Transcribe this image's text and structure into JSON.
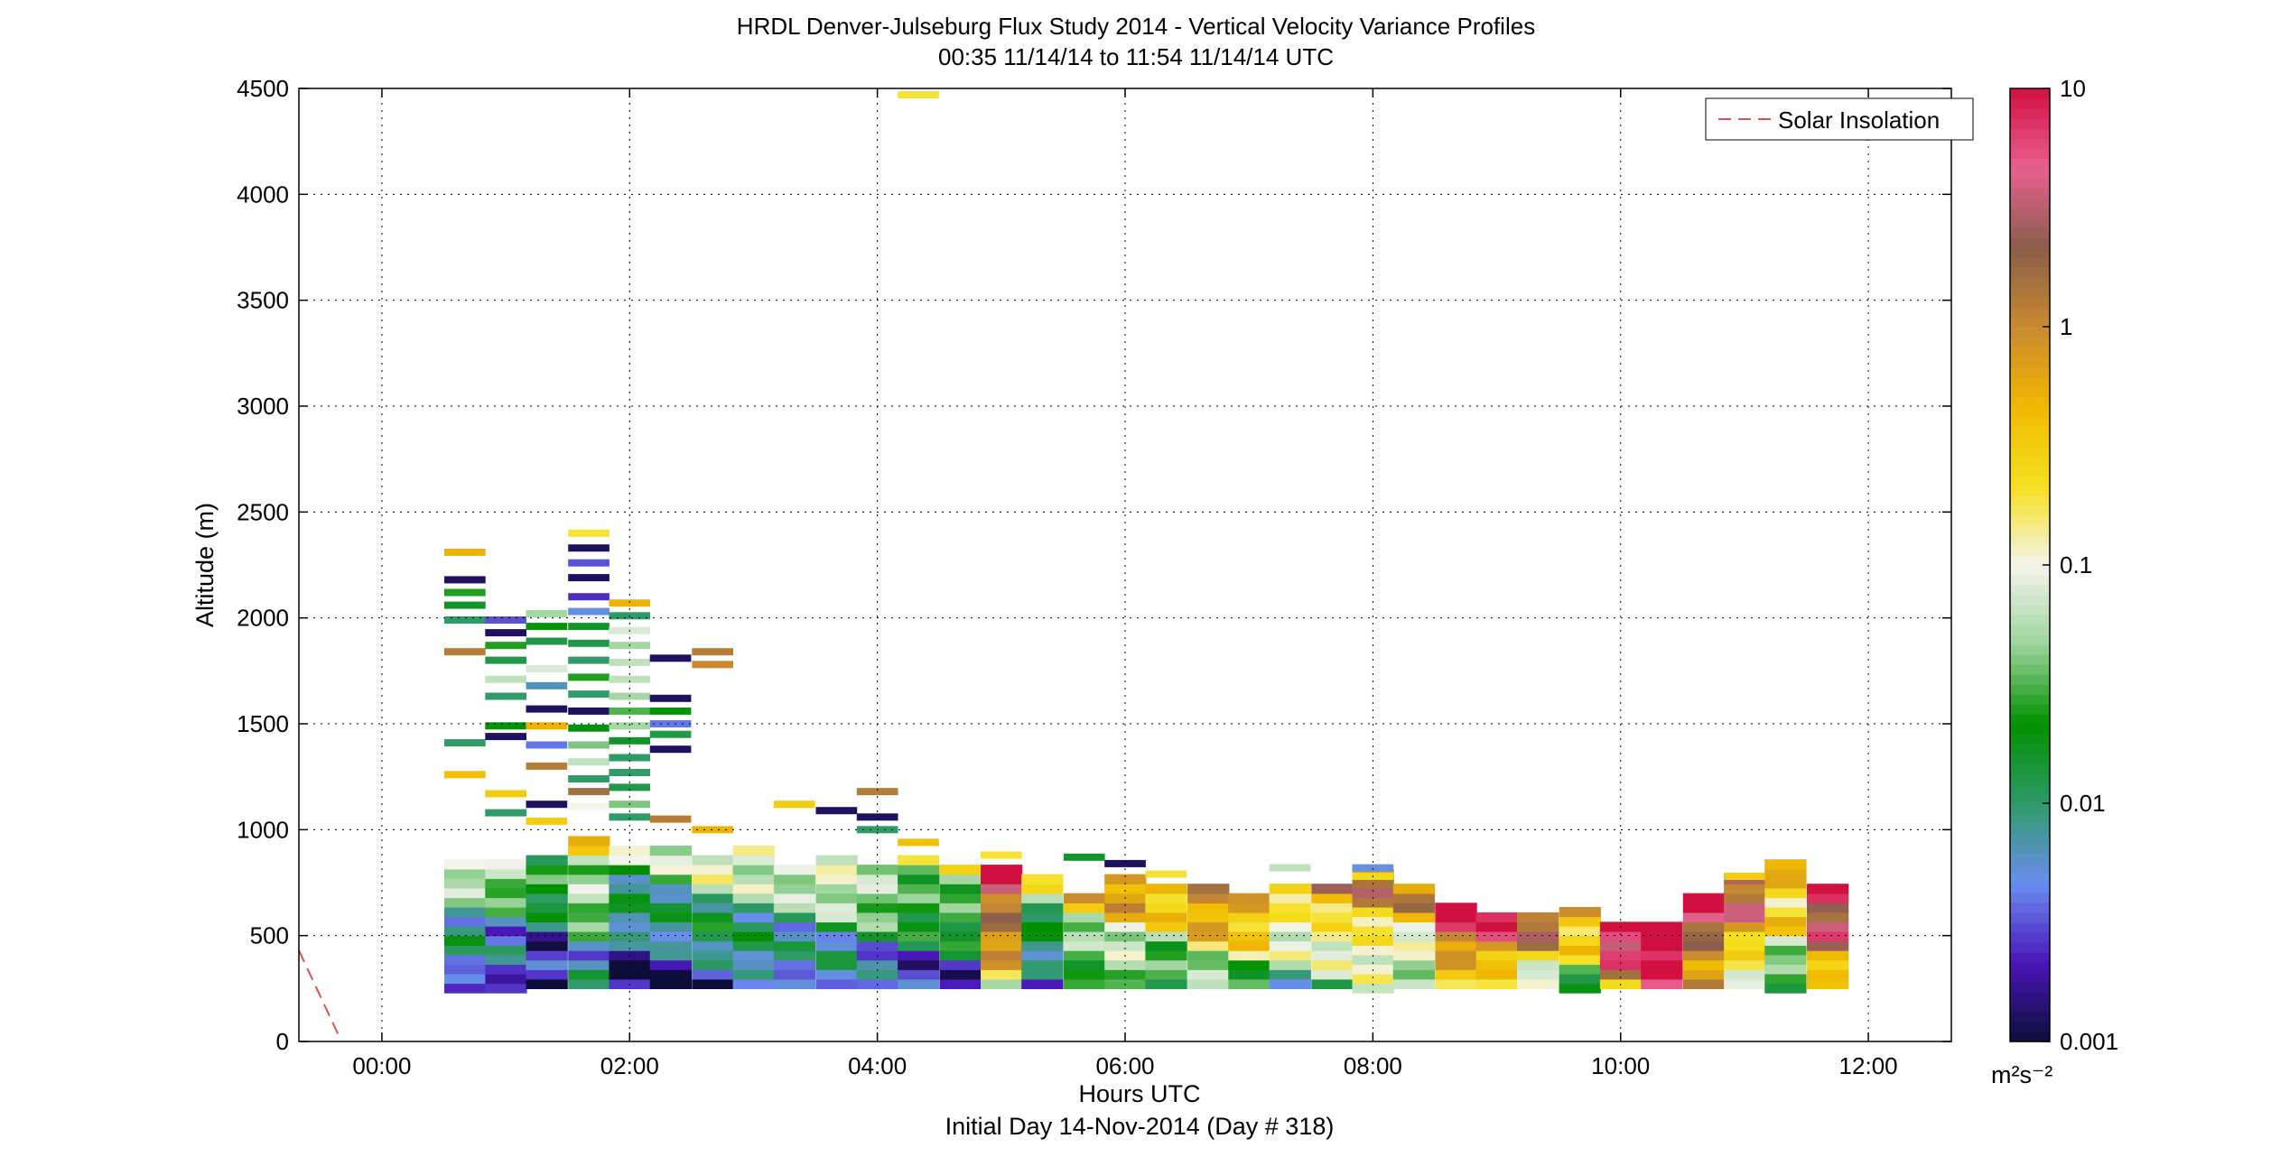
{
  "title_line1": "HRDL Denver-Julseburg Flux Study 2014 - Vertical Velocity Variance Profiles",
  "title_line2": "00:35 11/14/14 to 11:54 11/14/14  UTC",
  "xlabel": "Hours UTC",
  "xlabel_sub": "Initial Day 14-Nov-2014 (Day # 318)",
  "ylabel": "Altitude (m)",
  "legend_label": "Solar Insolation",
  "colorbar_unit": "m²s⁻²",
  "colors": {
    "background": "#ffffff",
    "grid": "#000000",
    "solar_line": "#e05050",
    "colormap": [
      "#0d0d3a",
      "#4a16b8",
      "#6a8ef0",
      "#2f9a6a",
      "#009000",
      "#9cd49c",
      "#f4f4ec",
      "#f5e020",
      "#f0b800",
      "#c98a30",
      "#8a5e4a",
      "#e86090",
      "#d01040"
    ]
  },
  "chart_data": {
    "type": "heatmap",
    "xlim_hours": [
      -0.67,
      12.67
    ],
    "ylim": [
      0,
      4500
    ],
    "x_ticks": [
      {
        "v": 0,
        "label": "00:00"
      },
      {
        "v": 2,
        "label": "02:00"
      },
      {
        "v": 4,
        "label": "04:00"
      },
      {
        "v": 6,
        "label": "06:00"
      },
      {
        "v": 8,
        "label": "08:00"
      },
      {
        "v": 10,
        "label": "10:00"
      },
      {
        "v": 12,
        "label": "12:00"
      }
    ],
    "y_ticks": [
      0,
      500,
      1000,
      1500,
      2000,
      2500,
      3000,
      3500,
      4000,
      4500
    ],
    "colorbar": {
      "scale": "log",
      "range": [
        0.001,
        10
      ],
      "ticks": [
        {
          "v": 0.001,
          "label": "0.001"
        },
        {
          "v": 0.01,
          "label": "0.01"
        },
        {
          "v": 0.1,
          "label": "0.1"
        },
        {
          "v": 1,
          "label": "1"
        },
        {
          "v": 10,
          "label": "10"
        }
      ]
    },
    "solar_insolation": {
      "x": [
        -0.67,
        -0.35
      ],
      "y": [
        430,
        30
      ]
    },
    "profile_times_hours": [
      0.67,
      1.0,
      1.33,
      1.67,
      2.0,
      2.33,
      2.67,
      3.0,
      3.33,
      3.67,
      4.0,
      4.33,
      4.67,
      5.0,
      5.33,
      5.67,
      6.0,
      6.33,
      6.67,
      7.0,
      7.33,
      7.67,
      8.0,
      8.33,
      8.67,
      9.0,
      9.33,
      9.67,
      10.0,
      10.33,
      10.67,
      11.0,
      11.33,
      11.67
    ],
    "profile_top_m": [
      820,
      820,
      880,
      940,
      900,
      900,
      850,
      920,
      830,
      850,
      820,
      850,
      820,
      800,
      750,
      700,
      750,
      730,
      720,
      700,
      730,
      720,
      780,
      740,
      620,
      590,
      590,
      620,
      550,
      550,
      700,
      750,
      840,
      740
    ],
    "profile_bottom_m": [
      230,
      230,
      250,
      250,
      250,
      250,
      250,
      250,
      250,
      250,
      250,
      250,
      250,
      250,
      250,
      250,
      250,
      250,
      250,
      250,
      250,
      250,
      230,
      250,
      250,
      250,
      250,
      230,
      250,
      250,
      250,
      250,
      230,
      250
    ],
    "column_low_variance_log10": [
      -2.7,
      -2.8,
      -2.9,
      -2.3,
      -2.9,
      -2.8,
      -2.6,
      -2.5,
      -2.6,
      -2.4,
      -2.5,
      -2.6,
      -2.5,
      -0.7,
      -2.6,
      -2.0,
      -1.6,
      -1.8,
      -1.4,
      -1.5,
      -1.8,
      -1.6,
      -1.4,
      -1.5,
      -0.6,
      -0.7,
      -1.1,
      -1.6,
      -0.2,
      0.4,
      -0.4,
      -1.0,
      -1.6,
      -0.5
    ],
    "high_streaks": [
      {
        "t": 0.67,
        "alt": 2310,
        "log10": -0.3
      },
      {
        "t": 0.67,
        "alt": 2180,
        "log10": -2.9
      },
      {
        "t": 0.67,
        "alt": 2120,
        "log10": -1.6
      },
      {
        "t": 0.67,
        "alt": 2060,
        "log10": -1.8
      },
      {
        "t": 0.67,
        "alt": 1990,
        "log10": -2.0
      },
      {
        "t": 0.67,
        "alt": 1840,
        "log10": 0.1
      },
      {
        "t": 0.67,
        "alt": 1410,
        "log10": -2.0
      },
      {
        "t": 0.67,
        "alt": 1260,
        "log10": -0.4
      },
      {
        "t": 1.0,
        "alt": 1990,
        "log10": -2.5
      },
      {
        "t": 1.0,
        "alt": 1930,
        "log10": -2.9
      },
      {
        "t": 1.0,
        "alt": 1870,
        "log10": -1.6
      },
      {
        "t": 1.0,
        "alt": 1800,
        "log10": -1.9
      },
      {
        "t": 1.0,
        "alt": 1710,
        "log10": -1.2
      },
      {
        "t": 1.0,
        "alt": 1630,
        "log10": -2.0
      },
      {
        "t": 1.0,
        "alt": 1490,
        "log10": -1.7
      },
      {
        "t": 1.0,
        "alt": 1440,
        "log10": -2.9
      },
      {
        "t": 1.0,
        "alt": 1170,
        "log10": -0.5
      },
      {
        "t": 1.0,
        "alt": 1080,
        "log10": -2.0
      },
      {
        "t": 1.33,
        "alt": 2020,
        "log10": -1.3
      },
      {
        "t": 1.33,
        "alt": 1960,
        "log10": -1.7
      },
      {
        "t": 1.33,
        "alt": 1890,
        "log10": -1.9
      },
      {
        "t": 1.33,
        "alt": 1760,
        "log10": -1.1
      },
      {
        "t": 1.33,
        "alt": 1680,
        "log10": -2.2
      },
      {
        "t": 1.33,
        "alt": 1570,
        "log10": -2.9
      },
      {
        "t": 1.33,
        "alt": 1490,
        "log10": -0.3
      },
      {
        "t": 1.33,
        "alt": 1400,
        "log10": -2.4
      },
      {
        "t": 1.33,
        "alt": 1300,
        "log10": 0.1
      },
      {
        "t": 1.33,
        "alt": 1120,
        "log10": -2.9
      },
      {
        "t": 1.33,
        "alt": 1040,
        "log10": -0.5
      },
      {
        "t": 1.67,
        "alt": 2400,
        "log10": -0.7
      },
      {
        "t": 1.67,
        "alt": 2330,
        "log10": -2.9
      },
      {
        "t": 1.67,
        "alt": 2260,
        "log10": -2.5
      },
      {
        "t": 1.67,
        "alt": 2190,
        "log10": -2.9
      },
      {
        "t": 1.67,
        "alt": 2100,
        "log10": -2.6
      },
      {
        "t": 1.67,
        "alt": 2030,
        "log10": -2.3
      },
      {
        "t": 1.67,
        "alt": 1960,
        "log10": -1.8
      },
      {
        "t": 1.67,
        "alt": 1880,
        "log10": -1.9
      },
      {
        "t": 1.67,
        "alt": 1800,
        "log10": -2.0
      },
      {
        "t": 1.67,
        "alt": 1720,
        "log10": -1.6
      },
      {
        "t": 1.67,
        "alt": 1640,
        "log10": -2.0
      },
      {
        "t": 1.67,
        "alt": 1560,
        "log10": -2.9
      },
      {
        "t": 1.67,
        "alt": 1480,
        "log10": -1.7
      },
      {
        "t": 1.67,
        "alt": 1400,
        "log10": -1.4
      },
      {
        "t": 1.67,
        "alt": 1320,
        "log10": -1.2
      },
      {
        "t": 1.67,
        "alt": 1240,
        "log10": -2.0
      },
      {
        "t": 1.67,
        "alt": 1180,
        "log10": 0.2
      },
      {
        "t": 1.67,
        "alt": 1110,
        "log10": -1.0
      },
      {
        "t": 2.0,
        "alt": 2070,
        "log10": -0.3
      },
      {
        "t": 2.0,
        "alt": 2010,
        "log10": -2.0
      },
      {
        "t": 2.0,
        "alt": 1940,
        "log10": -1.1
      },
      {
        "t": 2.0,
        "alt": 1870,
        "log10": -1.3
      },
      {
        "t": 2.0,
        "alt": 1790,
        "log10": -1.2
      },
      {
        "t": 2.0,
        "alt": 1710,
        "log10": -1.2
      },
      {
        "t": 2.0,
        "alt": 1630,
        "log10": -1.3
      },
      {
        "t": 2.0,
        "alt": 1560,
        "log10": -1.5
      },
      {
        "t": 2.0,
        "alt": 1490,
        "log10": -1.3
      },
      {
        "t": 2.0,
        "alt": 1420,
        "log10": -1.8
      },
      {
        "t": 2.0,
        "alt": 1340,
        "log10": -2.0
      },
      {
        "t": 2.0,
        "alt": 1270,
        "log10": -2.0
      },
      {
        "t": 2.0,
        "alt": 1200,
        "log10": -1.9
      },
      {
        "t": 2.0,
        "alt": 1120,
        "log10": -1.4
      },
      {
        "t": 2.0,
        "alt": 1060,
        "log10": -2.0
      },
      {
        "t": 2.33,
        "alt": 1810,
        "log10": -2.9
      },
      {
        "t": 2.33,
        "alt": 1620,
        "log10": -2.9
      },
      {
        "t": 2.33,
        "alt": 1560,
        "log10": -1.7
      },
      {
        "t": 2.33,
        "alt": 1500,
        "log10": -2.4
      },
      {
        "t": 2.33,
        "alt": 1450,
        "log10": -1.9
      },
      {
        "t": 2.33,
        "alt": 1380,
        "log10": -2.9
      },
      {
        "t": 2.33,
        "alt": 1050,
        "log10": 0.1
      },
      {
        "t": 2.67,
        "alt": 1840,
        "log10": 0.1
      },
      {
        "t": 2.67,
        "alt": 1780,
        "log10": 0.0
      },
      {
        "t": 2.67,
        "alt": 1000,
        "log10": -0.3
      },
      {
        "t": 3.33,
        "alt": 1120,
        "log10": -0.5
      },
      {
        "t": 3.67,
        "alt": 1090,
        "log10": -2.9
      },
      {
        "t": 4.0,
        "alt": 1180,
        "log10": 0.1
      },
      {
        "t": 4.0,
        "alt": 1060,
        "log10": -2.9
      },
      {
        "t": 4.0,
        "alt": 1000,
        "log10": -2.0
      },
      {
        "t": 4.33,
        "alt": 4470,
        "log10": -0.7
      },
      {
        "t": 4.33,
        "alt": 940,
        "log10": -0.4
      },
      {
        "t": 5.0,
        "alt": 880,
        "log10": -0.7
      },
      {
        "t": 5.67,
        "alt": 870,
        "log10": -1.8
      },
      {
        "t": 6.0,
        "alt": 840,
        "log10": -2.9
      },
      {
        "t": 6.33,
        "alt": 790,
        "log10": -0.7
      },
      {
        "t": 7.33,
        "alt": 820,
        "log10": -1.2
      },
      {
        "t": 8.0,
        "alt": 820,
        "log10": -2.3
      },
      {
        "t": 8.0,
        "alt": 780,
        "log10": -0.6
      },
      {
        "t": 11.0,
        "alt": 780,
        "log10": -0.5
      }
    ]
  }
}
